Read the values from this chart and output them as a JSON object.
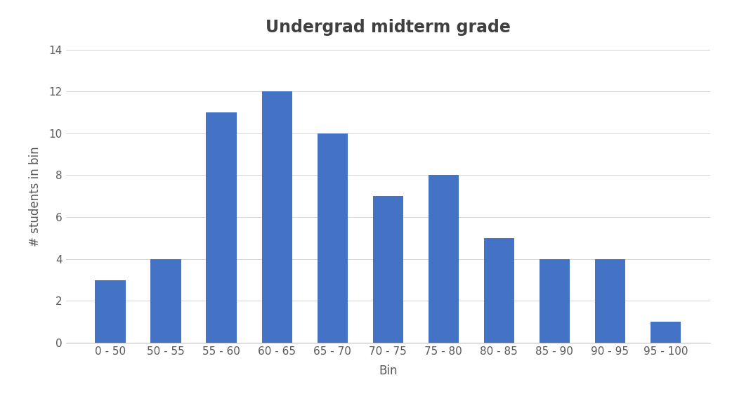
{
  "title": "Undergrad midterm grade",
  "xlabel": "Bin",
  "ylabel": "# students in bin",
  "categories": [
    "0 - 50",
    "50 - 55",
    "55 - 60",
    "60 - 65",
    "65 - 70",
    "70 - 75",
    "75 - 80",
    "80 - 85",
    "85 - 90",
    "90 - 95",
    "95 - 100"
  ],
  "values": [
    3,
    4,
    11,
    12,
    10,
    7,
    8,
    5,
    4,
    4,
    1
  ],
  "bar_color": "#4472C4",
  "ylim": [
    0,
    14
  ],
  "yticks": [
    0,
    2,
    4,
    6,
    8,
    10,
    12,
    14
  ],
  "title_fontsize": 17,
  "axis_label_fontsize": 12,
  "tick_fontsize": 11,
  "title_color": "#404040",
  "axis_label_color": "#595959",
  "tick_color": "#595959",
  "background_color": "#ffffff",
  "bar_width": 0.55,
  "grid_color": "#d0d0d0",
  "bottom_spine_color": "#c0c0c0"
}
